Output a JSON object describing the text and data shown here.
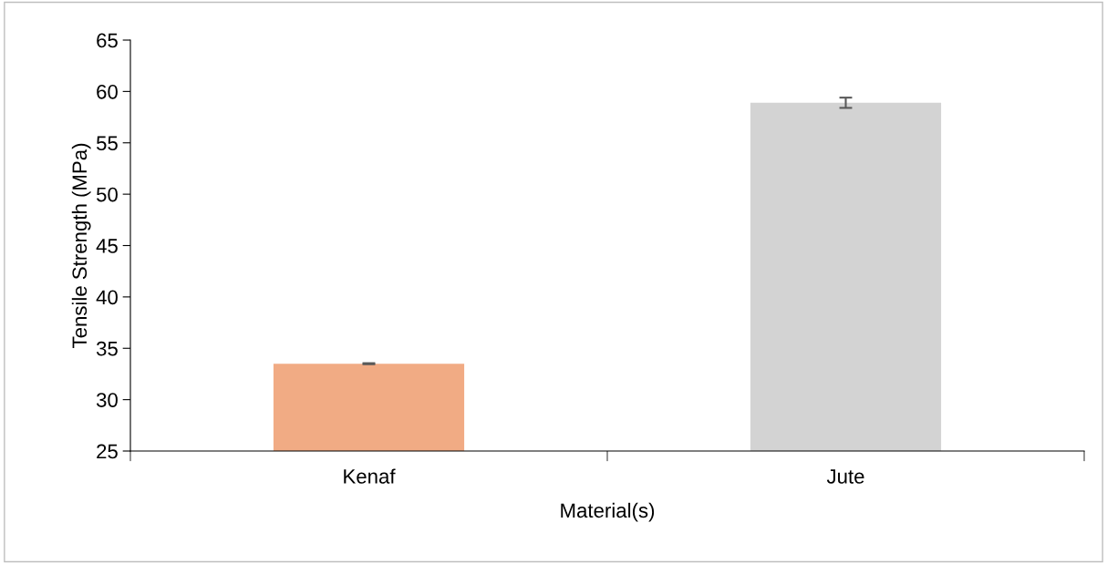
{
  "chart_data": {
    "type": "bar",
    "xlabel": "Material(s)",
    "ylabel": "Tensile Strength (MPa)",
    "categories": [
      "Kenaf",
      "Jute"
    ],
    "values": [
      33.5,
      58.9
    ],
    "colors": [
      "#f1ab84",
      "#d3d3d3"
    ],
    "errors": [
      0.05,
      0.5
    ],
    "ylim": [
      25,
      65
    ],
    "yticks": [
      25,
      30,
      35,
      40,
      45,
      50,
      55,
      60,
      65
    ],
    "grid": false
  }
}
